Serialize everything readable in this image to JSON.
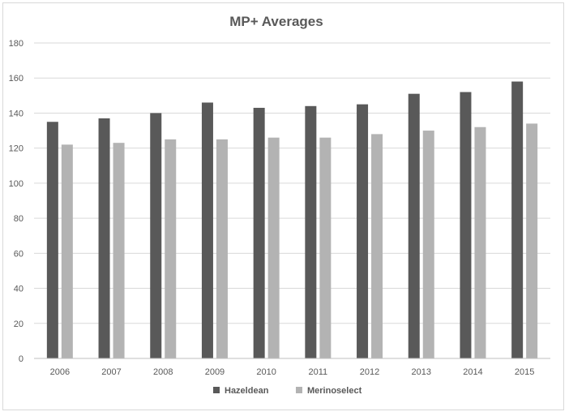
{
  "chart_data": {
    "type": "bar",
    "title": "MP+ Averages",
    "xlabel": "",
    "ylabel": "",
    "categories": [
      "2006",
      "2007",
      "2008",
      "2009",
      "2010",
      "2011",
      "2012",
      "2013",
      "2014",
      "2015"
    ],
    "series": [
      {
        "name": "Hazeldean",
        "color": "#595959",
        "values": [
          135,
          137,
          140,
          146,
          143,
          144,
          145,
          151,
          152,
          158
        ]
      },
      {
        "name": "Merinoselect",
        "color": "#b3b3b3",
        "values": [
          122,
          123,
          125,
          125,
          126,
          126,
          128,
          130,
          132,
          134
        ]
      }
    ],
    "ylim": [
      0,
      180
    ],
    "yticks": [
      0,
      20,
      40,
      60,
      80,
      100,
      120,
      140,
      160,
      180
    ],
    "grid": true,
    "legend_position": "bottom"
  }
}
